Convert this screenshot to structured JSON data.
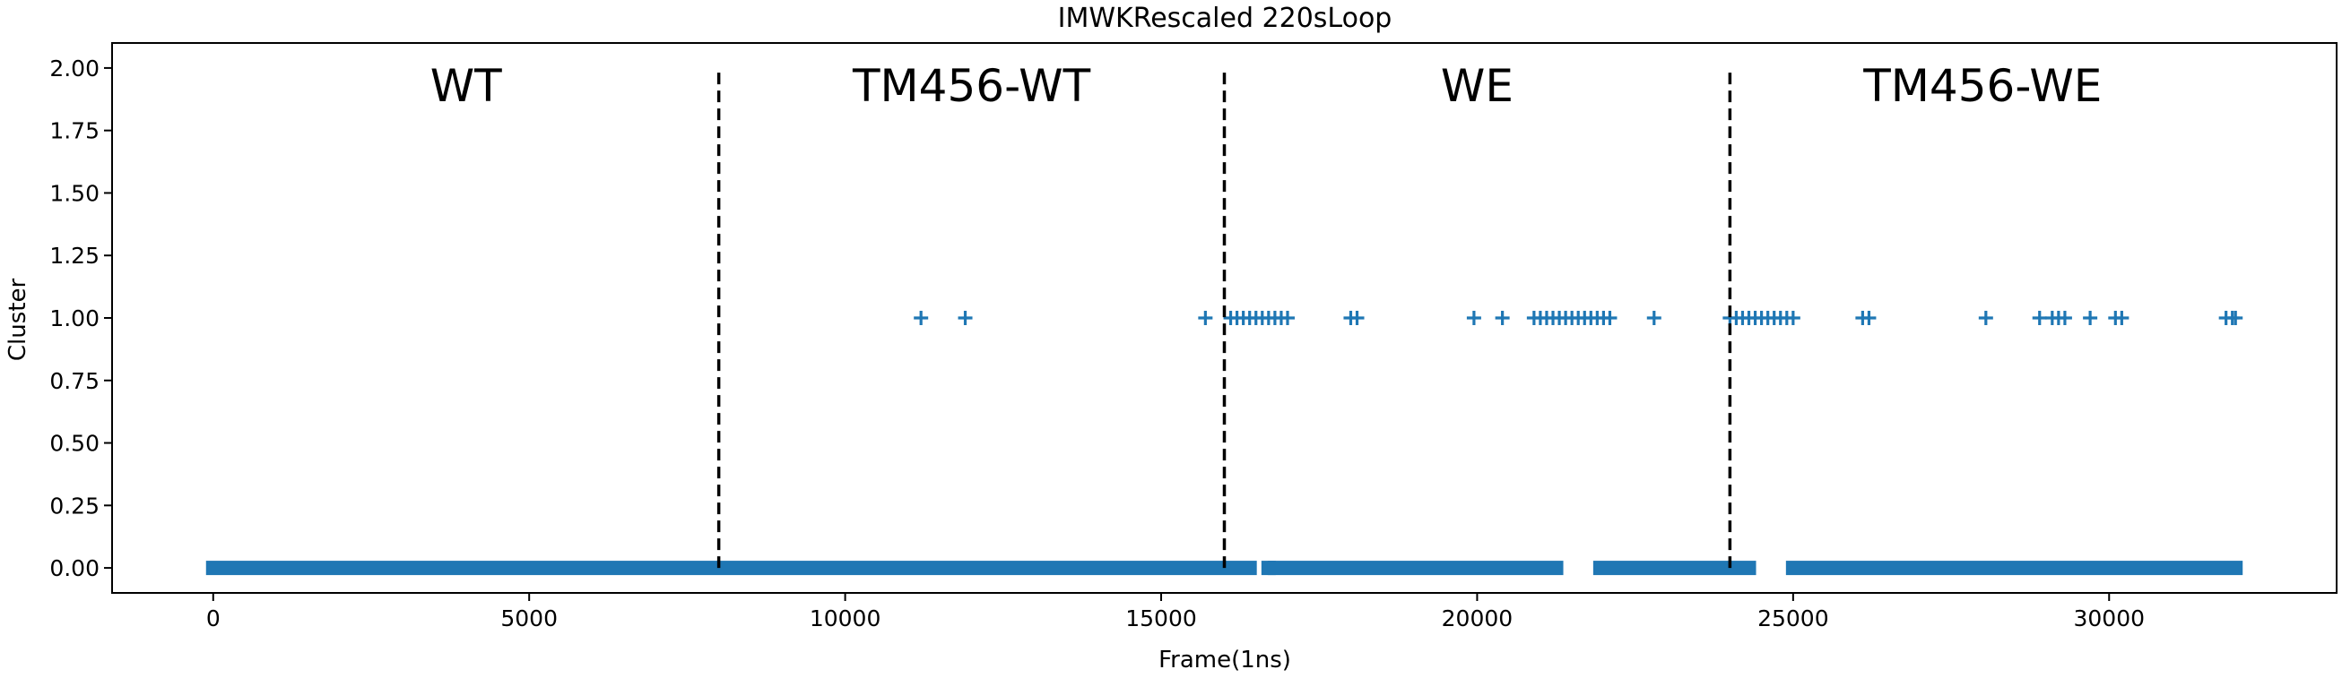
{
  "chart_data": {
    "type": "scatter",
    "title": "IMWKRescaled 220sLoop",
    "xlabel": "Frame(1ns)",
    "ylabel": "Cluster",
    "xlim": [
      -1600,
      33600
    ],
    "ylim": [
      -0.1,
      2.1
    ],
    "xticks": [
      0,
      5000,
      10000,
      15000,
      20000,
      25000,
      30000
    ],
    "xtick_labels": [
      "0",
      "5000",
      "10000",
      "15000",
      "20000",
      "25000",
      "30000"
    ],
    "yticks": [
      0.0,
      0.25,
      0.5,
      0.75,
      1.0,
      1.25,
      1.5,
      1.75,
      2.0
    ],
    "ytick_labels": [
      "0.00",
      "0.25",
      "0.50",
      "0.75",
      "1.00",
      "1.25",
      "1.50",
      "1.75",
      "2.00"
    ],
    "marker": "+",
    "color": "#1f77b4",
    "grid": false,
    "cluster0_segments": [
      [
        0,
        16400
      ],
      [
        16700,
        16700
      ],
      [
        16800,
        21250
      ],
      [
        21950,
        24300
      ],
      [
        25000,
        32000
      ]
    ],
    "cluster1_points": [
      11200,
      11900,
      15700,
      16100,
      16200,
      16300,
      16400,
      16500,
      16600,
      16700,
      16800,
      16900,
      17000,
      18000,
      18100,
      19950,
      20400,
      20900,
      21000,
      21100,
      21200,
      21300,
      21400,
      21500,
      21600,
      21700,
      21800,
      21900,
      22000,
      22100,
      22800,
      24000,
      24100,
      24200,
      24300,
      24400,
      24500,
      24600,
      24700,
      24800,
      24900,
      25000,
      26100,
      26200,
      28050,
      28900,
      29100,
      29200,
      29300,
      29700,
      30100,
      30200,
      31850,
      31950,
      32000
    ],
    "region_boundaries": [
      8000,
      16000,
      24000
    ],
    "region_lines": {
      "style": "dashed",
      "color": "#000000",
      "y_from": 0.0,
      "y_to": 2.0
    },
    "regions": [
      {
        "label": "WT",
        "x": 4000
      },
      {
        "label": "TM456-WT",
        "x": 12000
      },
      {
        "label": "WE",
        "x": 20000
      },
      {
        "label": "TM456-WE",
        "x": 28000
      }
    ]
  }
}
